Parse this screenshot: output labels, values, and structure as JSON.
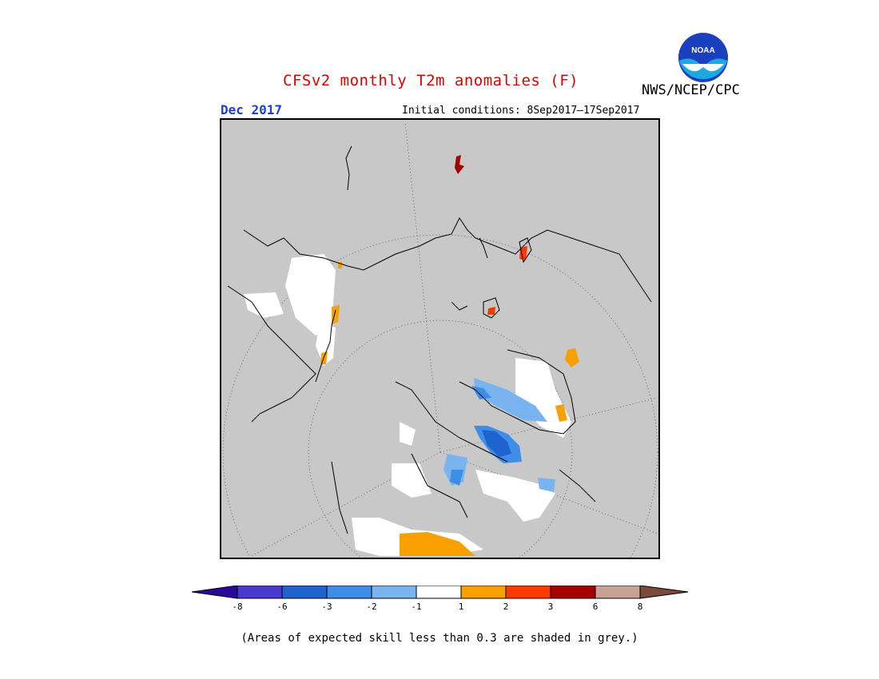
{
  "title": "CFSv2 monthly T2m anomalies (F)",
  "organization": "NWS/NCEP/CPC",
  "logo": {
    "text": "NOAA",
    "icon": "noaa-logo-icon"
  },
  "target_month": "Dec 2017",
  "initial_conditions": "Initial conditions: 8Sep2017–17Sep2017",
  "map": {
    "projection": "north-polar-stereographic",
    "background": "#c8c8c8",
    "skill_mask_color": "#c8c8c8",
    "graticule": "dotted",
    "coastline_color": "#000000"
  },
  "colorbar": {
    "tick_labels": [
      "-8",
      "-6",
      "-3",
      "-2",
      "-1",
      "1",
      "2",
      "3",
      "6",
      "8"
    ],
    "colors": [
      "#2a0a9a",
      "#4a3ad0",
      "#1f63cf",
      "#3e8de6",
      "#7ab4f0",
      "#ffffff",
      "#f7a000",
      "#ff3a00",
      "#a50000",
      "#c8a394",
      "#7a4a3a"
    ],
    "under_color": "#2a0a9a",
    "over_color": "#7a4a3a"
  },
  "note": "(Areas of expected skill less than 0.3 are shaded in grey.)"
}
